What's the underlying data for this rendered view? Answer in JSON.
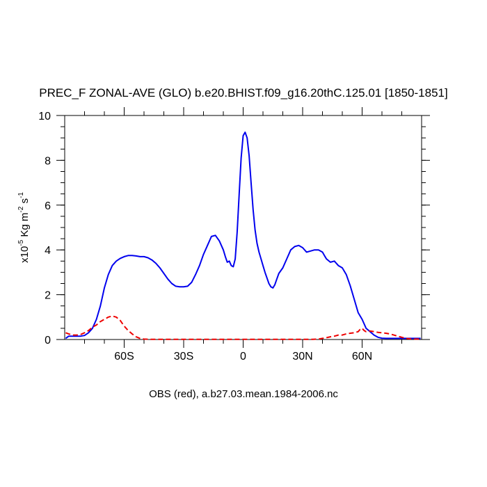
{
  "chart_data": {
    "type": "line",
    "title": "PREC_F ZONAL-AVE (GLO) b.e20.BHIST.f09_g16.20thC.125.01 [1850-1851]",
    "xlabel": "OBS (red), a.b27.03.mean.1984-2006.nc",
    "ylabel": {
      "prefix": "x10",
      "exp1": "-5",
      "units1": " Kg m",
      "exp2": "-2",
      "units2": " s",
      "exp3": "-1"
    },
    "xlim": [
      -90,
      90
    ],
    "ylim": [
      0,
      10
    ],
    "x_ticks": [
      {
        "value": -60,
        "label": "60S"
      },
      {
        "value": -30,
        "label": "30S"
      },
      {
        "value": 0,
        "label": "0"
      },
      {
        "value": 30,
        "label": "30N"
      },
      {
        "value": 60,
        "label": "60N"
      }
    ],
    "x_minor_step": 10,
    "y_ticks": [
      {
        "value": 0,
        "label": "0"
      },
      {
        "value": 2,
        "label": "2"
      },
      {
        "value": 4,
        "label": "4"
      },
      {
        "value": 6,
        "label": "6"
      },
      {
        "value": 8,
        "label": "8"
      },
      {
        "value": 10,
        "label": "10"
      }
    ],
    "y_minor_step": 0.5,
    "series": [
      {
        "color": "#0000ee",
        "style": "solid",
        "x": [
          -89.5,
          -88,
          -86,
          -84,
          -82,
          -80,
          -78,
          -76,
          -74,
          -72,
          -70,
          -68,
          -66,
          -64,
          -62,
          -60,
          -58,
          -56,
          -54,
          -52,
          -50,
          -48,
          -46,
          -44,
          -42,
          -40,
          -38,
          -36,
          -34,
          -32,
          -30,
          -28,
          -26,
          -24,
          -22,
          -20,
          -18,
          -16,
          -14,
          -12,
          -10,
          -9,
          -8,
          -7,
          -6,
          -5,
          -4,
          -3,
          -2,
          -1,
          0,
          1,
          2,
          3,
          4,
          5,
          6,
          7,
          8,
          9,
          10,
          11,
          12,
          13,
          14,
          15,
          16,
          17,
          18,
          20,
          22,
          24,
          26,
          28,
          30,
          32,
          34,
          36,
          38,
          40,
          41,
          42,
          44,
          46,
          48,
          50,
          52,
          54,
          56,
          58,
          60,
          61,
          62,
          64,
          66,
          68,
          70,
          72,
          74,
          76,
          78,
          80,
          82,
          84,
          86,
          88,
          89.5
        ],
        "y": [
          0.05,
          0.15,
          0.15,
          0.15,
          0.15,
          0.18,
          0.3,
          0.5,
          0.9,
          1.5,
          2.3,
          2.9,
          3.3,
          3.5,
          3.62,
          3.7,
          3.75,
          3.75,
          3.73,
          3.7,
          3.7,
          3.65,
          3.55,
          3.4,
          3.2,
          2.95,
          2.7,
          2.5,
          2.38,
          2.35,
          2.35,
          2.38,
          2.55,
          2.9,
          3.3,
          3.8,
          4.2,
          4.6,
          4.65,
          4.4,
          4.0,
          3.7,
          3.45,
          3.5,
          3.3,
          3.25,
          3.6,
          4.8,
          6.5,
          8.1,
          9.1,
          9.25,
          9.0,
          8.2,
          7.0,
          5.8,
          4.9,
          4.3,
          3.9,
          3.6,
          3.3,
          3.0,
          2.75,
          2.5,
          2.35,
          2.3,
          2.45,
          2.7,
          2.95,
          3.2,
          3.6,
          4.0,
          4.15,
          4.2,
          4.1,
          3.9,
          3.95,
          4.0,
          4.0,
          3.9,
          3.75,
          3.6,
          3.45,
          3.5,
          3.3,
          3.2,
          2.9,
          2.4,
          1.8,
          1.2,
          0.9,
          0.7,
          0.5,
          0.35,
          0.2,
          0.1,
          0.06,
          0.05,
          0.05,
          0.05,
          0.05,
          0.05,
          0.05,
          0.05,
          0.05,
          0.05,
          0.05
        ]
      },
      {
        "color": "#ee0000",
        "style": "dashed",
        "x": [
          -89.5,
          -88,
          -86,
          -84,
          -82,
          -80,
          -78,
          -76,
          -74,
          -72,
          -70,
          -68,
          -66,
          -64,
          -62,
          -60,
          -58,
          -56,
          -54,
          -52,
          -50,
          -48,
          -46,
          -40,
          -30,
          -20,
          -10,
          0,
          10,
          20,
          30,
          35,
          38,
          40,
          42,
          44,
          46,
          48,
          50,
          52,
          54,
          56,
          58,
          59,
          60,
          61,
          62,
          64,
          66,
          68,
          70,
          72,
          74,
          76,
          78,
          80,
          82,
          84,
          86,
          88,
          89.5
        ],
        "y": [
          0.3,
          0.25,
          0.2,
          0.2,
          0.22,
          0.3,
          0.4,
          0.55,
          0.65,
          0.8,
          0.9,
          1.0,
          1.05,
          1.0,
          0.85,
          0.6,
          0.4,
          0.25,
          0.12,
          0.05,
          0.02,
          0.01,
          0.01,
          0.01,
          0.01,
          0.01,
          0.01,
          0.01,
          0.01,
          0.01,
          0.01,
          0.01,
          0.02,
          0.05,
          0.08,
          0.12,
          0.15,
          0.2,
          0.2,
          0.25,
          0.28,
          0.3,
          0.35,
          0.45,
          0.5,
          0.4,
          0.35,
          0.38,
          0.35,
          0.32,
          0.3,
          0.28,
          0.25,
          0.2,
          0.15,
          0.1,
          0.05,
          0.03,
          0.02,
          0.02,
          0.02
        ]
      }
    ],
    "grid": false,
    "legend": "none"
  }
}
